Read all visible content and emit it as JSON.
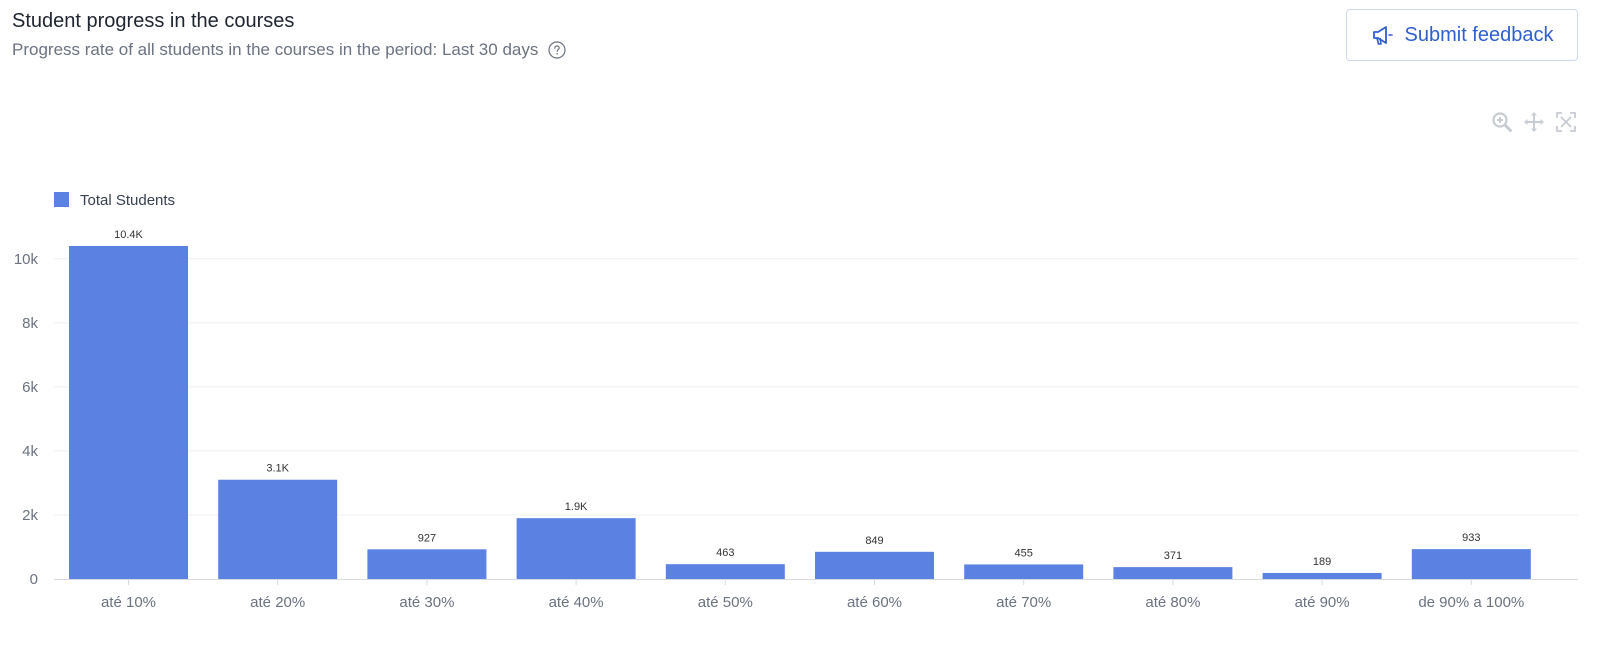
{
  "header": {
    "title": "Student progress in the courses",
    "subtitle": "Progress rate of all students in the courses in the period: Last 30 days",
    "help_icon": "question-circle-icon"
  },
  "feedback_button": {
    "label": "Submit feedback",
    "icon": "megaphone-icon"
  },
  "toolbar": {
    "tools": [
      "zoom-in-icon",
      "pan-icon",
      "reset-zoom-icon"
    ]
  },
  "colors": {
    "bar": "#5b82e3",
    "accent": "#2f5fd0",
    "grid": "#eeeff2",
    "toolbar_icon": "#c7ccd3"
  },
  "chart_data": {
    "type": "bar",
    "categories": [
      "até 10%",
      "até 20%",
      "até 30%",
      "até 40%",
      "até 50%",
      "até 60%",
      "até 70%",
      "até 80%",
      "até 90%",
      "de 90% a 100%"
    ],
    "series": [
      {
        "name": "Total Students",
        "values": [
          10400,
          3100,
          927,
          1900,
          463,
          849,
          455,
          371,
          189,
          933
        ],
        "data_labels": [
          "10.4K",
          "3.1K",
          "927",
          "1.9K",
          "463",
          "849",
          "455",
          "371",
          "189",
          "933"
        ]
      }
    ],
    "y_ticks": [
      "0",
      "2k",
      "4k",
      "6k",
      "8k",
      "10k"
    ],
    "y_tick_values": [
      0,
      2000,
      4000,
      6000,
      8000,
      10000
    ],
    "ylim": [
      0,
      10400
    ],
    "grid": true,
    "legend": "top-left"
  }
}
